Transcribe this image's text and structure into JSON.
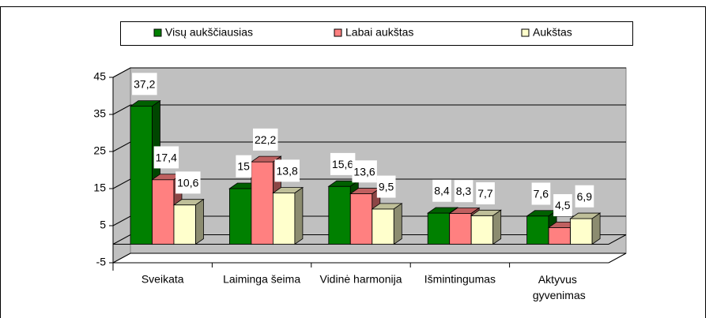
{
  "chart_data": {
    "type": "bar3d",
    "categories": [
      "Sveikata",
      "Laiminga šeima",
      "Vidinė harmonija",
      "Išmintingumas",
      "Aktyvus gyvenimas"
    ],
    "series": [
      {
        "name": "Visų aukščiausias",
        "color": "#008000",
        "values": [
          37.2,
          15,
          15.6,
          8.4,
          7.6
        ],
        "value_labels": [
          "37,2",
          "15",
          "15,6",
          "8,4",
          "7,6"
        ]
      },
      {
        "name": "Labai aukštas",
        "color": "#ff8080",
        "values": [
          17.4,
          22.2,
          13.6,
          8.3,
          4.5
        ],
        "value_labels": [
          "17,4",
          "22,2",
          "13,6",
          "8,3",
          "4,5"
        ]
      },
      {
        "name": "Aukštas",
        "color": "#ffffcc",
        "values": [
          10.6,
          13.8,
          9.5,
          7.7,
          6.9
        ],
        "value_labels": [
          "10,6",
          "13,8",
          "9,5",
          "7,7",
          "6,9"
        ]
      }
    ],
    "ylim": [
      -5,
      45
    ],
    "yticks": [
      -5,
      5,
      15,
      25,
      35,
      45
    ],
    "grid": true,
    "legend": "top"
  }
}
